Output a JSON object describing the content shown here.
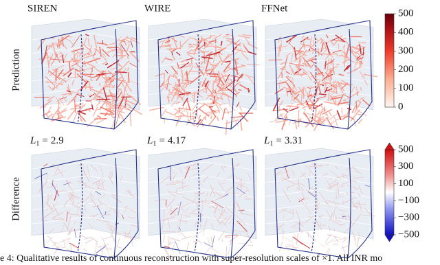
{
  "columns": [
    "SIREN",
    "WIRE",
    "FFNet"
  ],
  "rows": [
    "Prediction",
    "Difference"
  ],
  "difference_metrics": [
    {
      "symbol": "L",
      "index": "1",
      "operator": "=",
      "value": "2.9"
    },
    {
      "symbol": "L",
      "index": "1",
      "operator": "=",
      "value": "4.17"
    },
    {
      "symbol": "L",
      "index": "1",
      "operator": "=",
      "value": "3.31"
    }
  ],
  "colorbars": [
    {
      "ticks": [
        "500",
        "400",
        "300",
        "200",
        "100",
        "0"
      ]
    },
    {
      "ticks": [
        "500",
        "300",
        "100",
        "−100",
        "−300",
        "−500"
      ]
    }
  ],
  "caption": "e 4: Qualitative results of continuous reconstruction with super-resolution scales of ×1. All INR mo"
}
